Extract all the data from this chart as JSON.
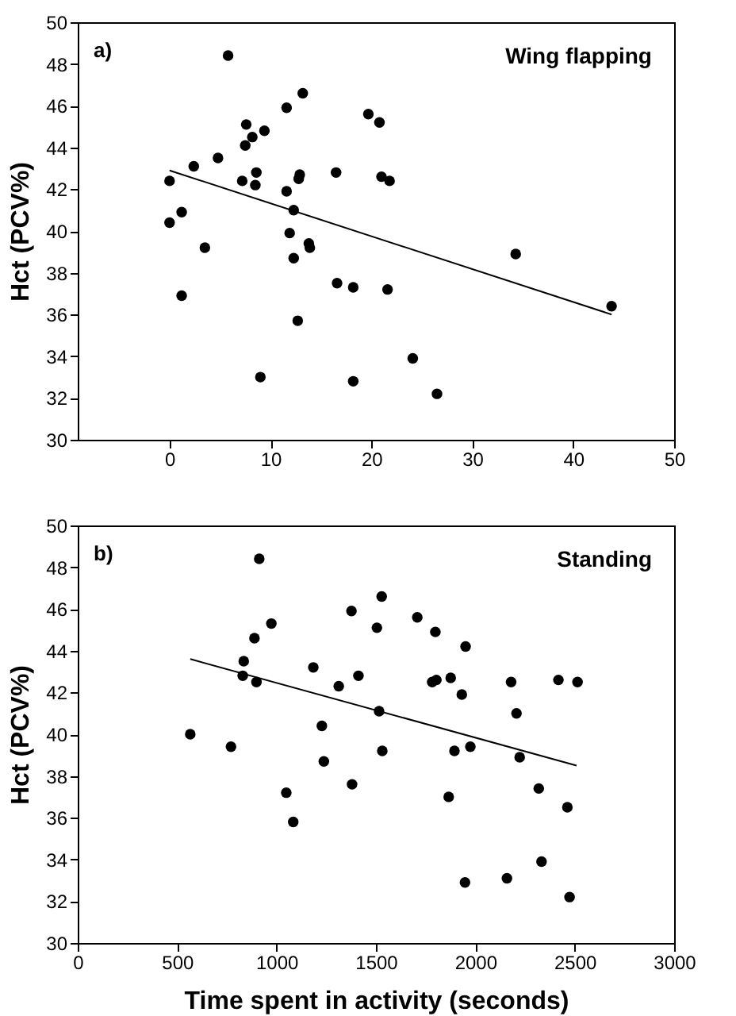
{
  "chart_data": [
    {
      "type": "scatter",
      "title": "Wing flapping",
      "ylabel": "Hct (PCV%)",
      "annotations": [
        "a)"
      ],
      "xlim": [
        -9.1,
        50
      ],
      "xticks": [
        0,
        10,
        20,
        30,
        40,
        50
      ],
      "ylim": [
        30,
        50
      ],
      "yticks": [
        30,
        32,
        34,
        36,
        38,
        40,
        42,
        44,
        46,
        48,
        50
      ],
      "grid": false,
      "series": [
        {
          "type": "scatter",
          "marker": "circle",
          "color": "#000000",
          "x": [
            5.8,
            13.2,
            11.6,
            19.7,
            20.8,
            7.6,
            9.4,
            8.2,
            7.5,
            4.8,
            2.4,
            16.5,
            8.6,
            12.9,
            21.0,
            12.8,
            7.2,
            21.8,
            0,
            8.5,
            11.6,
            12.3,
            1.2,
            0,
            11.9,
            13.8,
            13.9,
            3.5,
            34.3,
            12.3,
            16.6,
            18.2,
            21.6,
            1.2,
            43.8,
            12.7,
            24.1,
            9.0,
            18.2,
            26.5
          ],
          "values": [
            48.4,
            46.6,
            45.9,
            45.6,
            45.2,
            45.1,
            44.8,
            44.5,
            44.1,
            43.5,
            43.1,
            42.8,
            42.8,
            42.7,
            42.6,
            42.5,
            42.4,
            42.4,
            42.4,
            42.2,
            41.9,
            41.0,
            40.9,
            40.4,
            39.9,
            39.4,
            39.2,
            39.2,
            38.9,
            38.7,
            37.5,
            37.3,
            37.2,
            36.9,
            36.4,
            35.7,
            33.9,
            33.0,
            32.8,
            32.2
          ]
        },
        {
          "type": "line",
          "color": "#000000",
          "x": [
            0,
            43.8
          ],
          "values": [
            42.9,
            36.0
          ]
        }
      ]
    },
    {
      "type": "scatter",
      "title": "Standing",
      "xlabel": "Time spent in activity (seconds)",
      "ylabel": "Hct (PCV%)",
      "annotations": [
        "b)"
      ],
      "xlim": [
        0,
        3000
      ],
      "xticks": [
        0,
        500,
        1000,
        1500,
        2000,
        2500,
        3000
      ],
      "ylim": [
        30,
        50
      ],
      "yticks": [
        30,
        32,
        34,
        36,
        38,
        40,
        42,
        44,
        46,
        48,
        50
      ],
      "grid": false,
      "series": [
        {
          "type": "scatter",
          "marker": "circle",
          "color": "#000000",
          "x": [
            913,
            1529,
            1377,
            1708,
            974,
            1505,
            1799,
            889,
            1951,
            835,
            1185,
            830,
            1412,
            1876,
            1804,
            2418,
            2180,
            2514,
            899,
            1783,
            1313,
            1932,
            1516,
            2207,
            1228,
            566,
            771,
            1975,
            1532,
            1895,
            2223,
            1238,
            2319,
            1380,
            1049,
            1866,
            2463,
            1084,
            2333,
            2159,
            1948,
            2474
          ],
          "values": [
            48.4,
            46.6,
            45.9,
            45.6,
            45.3,
            45.1,
            44.9,
            44.6,
            44.2,
            43.5,
            43.2,
            42.8,
            42.8,
            42.7,
            42.6,
            42.6,
            42.5,
            42.5,
            42.5,
            42.5,
            42.3,
            41.9,
            41.1,
            41.0,
            40.4,
            40.0,
            39.4,
            39.4,
            39.2,
            39.2,
            38.9,
            38.7,
            37.4,
            37.6,
            37.2,
            37.0,
            36.5,
            35.8,
            33.9,
            33.1,
            32.9,
            32.2
          ]
        },
        {
          "type": "line",
          "color": "#000000",
          "x": [
            566,
            2509
          ],
          "values": [
            43.6,
            38.5
          ]
        }
      ]
    }
  ]
}
